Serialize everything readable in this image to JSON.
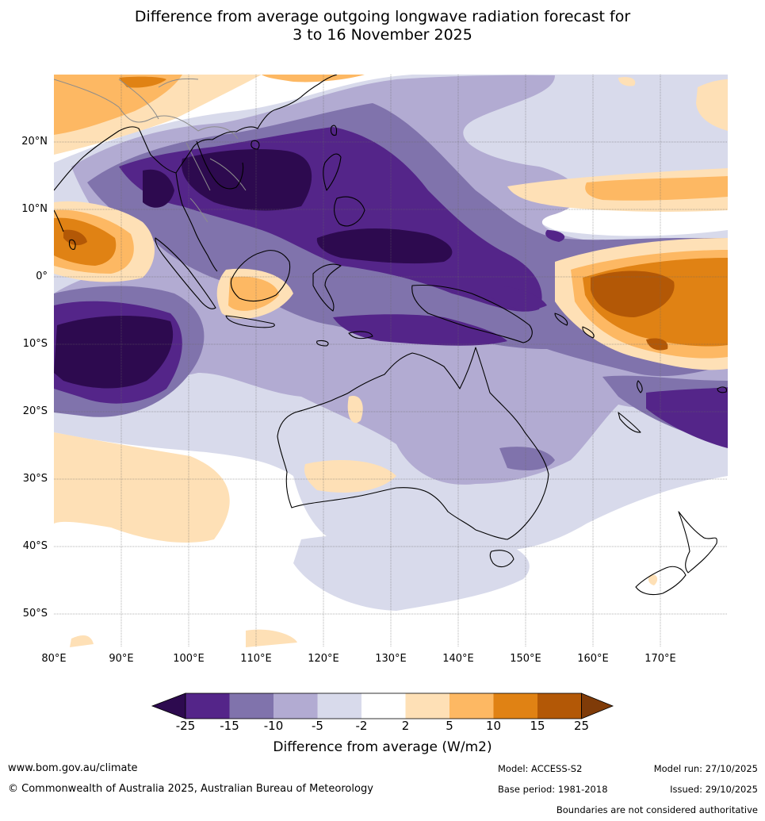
{
  "title": {
    "line1": "Difference from average outgoing longwave radiation forecast for",
    "line2": "3 to 16 November 2025"
  },
  "map": {
    "lat_labels": [
      "20°N",
      "10°N",
      "0°",
      "10°S",
      "20°S",
      "30°S",
      "40°S",
      "50°S"
    ],
    "lon_labels": [
      "80°E",
      "90°E",
      "100°E",
      "110°E",
      "120°E",
      "130°E",
      "140°E",
      "150°E",
      "160°E",
      "170°E"
    ],
    "colors": {
      "le_minus25": "#2d0a4f",
      "minus25_minus15": "#542589",
      "minus15_minus10": "#8073ac",
      "minus10_minus5": "#b2abd2",
      "minus5_minus2": "#d8daeb",
      "minus2_2": "#ffffff",
      "2_5": "#fee0b6",
      "5_10": "#fdb863",
      "10_15": "#e08214",
      "15_25": "#b35806",
      "ge_25": "#7f3b08",
      "coast": "#000000",
      "border": "#8c8c8c",
      "grid": "#666666"
    }
  },
  "colorbar": {
    "ticks": [
      "-25",
      "-15",
      "-10",
      "-5",
      "-2",
      "2",
      "5",
      "10",
      "15",
      "25"
    ],
    "label": "Difference from average (W/m2)"
  },
  "footer": {
    "website": "www.bom.gov.au/climate",
    "copyright": "© Commonwealth of Australia 2025, Australian Bureau of Meteorology",
    "model": "Model: ACCESS-S2",
    "base_period": "Base period: 1981-2018",
    "model_run": "Model run: 27/10/2025",
    "issued": "Issued: 29/10/2025",
    "disclaimer": "Boundaries are not considered authoritative"
  }
}
